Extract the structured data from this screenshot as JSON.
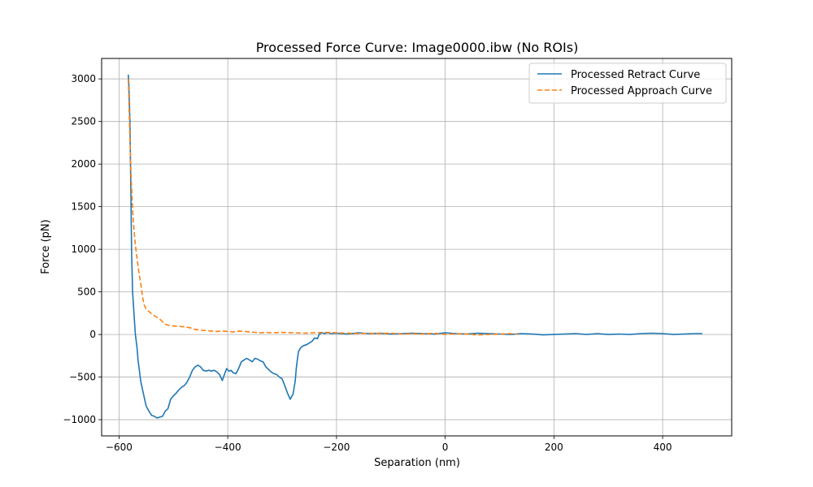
{
  "chart_data": {
    "type": "line",
    "title": "Processed Force Curve: Image0000.ibw (No ROIs)",
    "xlabel": "Separation (nm)",
    "ylabel": "Force (pN)",
    "xlim": [
      -632,
      527
    ],
    "ylim": [
      -1190,
      3240
    ],
    "xticks": [
      -600,
      -400,
      -200,
      0,
      200,
      400
    ],
    "yticks": [
      -1000,
      -500,
      0,
      500,
      1000,
      1500,
      2000,
      2500,
      3000
    ],
    "xtick_labels": [
      "−600",
      "−400",
      "−200",
      "0",
      "200",
      "400"
    ],
    "ytick_labels": [
      "−1000",
      "−500",
      "0",
      "500",
      "1000",
      "1500",
      "2000",
      "2500",
      "3000"
    ],
    "grid": true,
    "legend_position": "top-right",
    "series": [
      {
        "name": "Processed Retract Curve",
        "color": "#1f77b4",
        "style": "solid",
        "x": [
          -583,
          -582,
          -580,
          -578,
          -577,
          -575,
          -572,
          -570,
          -567,
          -565,
          -562,
          -560,
          -555,
          -550,
          -545,
          -540,
          -535,
          -530,
          -525,
          -520,
          -515,
          -510,
          -505,
          -500,
          -495,
          -490,
          -485,
          -480,
          -475,
          -470,
          -465,
          -460,
          -455,
          -450,
          -445,
          -440,
          -435,
          -430,
          -425,
          -420,
          -415,
          -410,
          -405,
          -402,
          -398,
          -394,
          -390,
          -385,
          -380,
          -375,
          -370,
          -365,
          -360,
          -355,
          -350,
          -345,
          -340,
          -335,
          -330,
          -325,
          -320,
          -315,
          -310,
          -305,
          -300,
          -295,
          -290,
          -285,
          -280,
          -276,
          -274,
          -272,
          -270,
          -265,
          -260,
          -255,
          -250,
          -245,
          -240,
          -235,
          -232,
          -230,
          -226,
          -222,
          -220,
          -215,
          -210,
          -200,
          -180,
          -160,
          -140,
          -120,
          -100,
          -80,
          -60,
          -40,
          -20,
          0,
          20,
          40,
          60,
          80,
          100,
          120,
          140,
          160,
          180,
          200,
          220,
          240,
          260,
          280,
          300,
          320,
          340,
          360,
          380,
          400,
          420,
          440,
          460,
          473
        ],
        "y": [
          3050,
          2950,
          2500,
          1600,
          1000,
          500,
          200,
          0,
          -150,
          -300,
          -450,
          -550,
          -700,
          -840,
          -900,
          -950,
          -960,
          -980,
          -970,
          -960,
          -900,
          -870,
          -760,
          -720,
          -690,
          -650,
          -620,
          -600,
          -560,
          -500,
          -420,
          -380,
          -360,
          -380,
          -420,
          -430,
          -420,
          -430,
          -420,
          -440,
          -470,
          -540,
          -450,
          -400,
          -430,
          -420,
          -450,
          -460,
          -400,
          -320,
          -300,
          -280,
          -300,
          -320,
          -280,
          -290,
          -310,
          -320,
          -380,
          -410,
          -440,
          -460,
          -470,
          -500,
          -520,
          -600,
          -690,
          -760,
          -700,
          -550,
          -400,
          -300,
          -200,
          -150,
          -130,
          -120,
          -100,
          -80,
          -40,
          -50,
          0,
          10,
          20,
          10,
          15,
          20,
          10,
          15,
          5,
          20,
          10,
          15,
          5,
          10,
          15,
          10,
          5,
          20,
          10,
          5,
          15,
          10,
          5,
          0,
          10,
          5,
          -5,
          0,
          5,
          10,
          0,
          10,
          0,
          5,
          0,
          10,
          15,
          10,
          0,
          5,
          10,
          10
        ]
      },
      {
        "name": "Processed Approach Curve",
        "color": "#ff7f0e",
        "style": "dashed",
        "x": [
          -583,
          -582,
          -580,
          -578,
          -576,
          -574,
          -572,
          -570,
          -567,
          -564,
          -560,
          -557,
          -554,
          -550,
          -545,
          -540,
          -535,
          -530,
          -525,
          -520,
          -515,
          -510,
          -500,
          -490,
          -480,
          -470,
          -460,
          -450,
          -440,
          -430,
          -420,
          -410,
          -400,
          -390,
          -380,
          -370,
          -360,
          -350,
          -340,
          -330,
          -320,
          -300,
          -280,
          -260,
          -240,
          -220,
          -200,
          -180,
          -160,
          -140,
          -120,
          -100,
          -80,
          -60,
          -40,
          -20,
          0,
          20,
          40,
          60,
          80,
          100,
          120,
          133
        ],
        "y": [
          3000,
          2800,
          2300,
          1900,
          1600,
          1350,
          1200,
          1050,
          900,
          750,
          600,
          450,
          350,
          300,
          270,
          240,
          220,
          200,
          180,
          150,
          120,
          110,
          100,
          95,
          90,
          80,
          60,
          50,
          45,
          40,
          35,
          40,
          35,
          30,
          40,
          35,
          30,
          25,
          20,
          25,
          20,
          25,
          20,
          15,
          20,
          25,
          20,
          15,
          10,
          15,
          10,
          15,
          5,
          10,
          5,
          15,
          0,
          10,
          5,
          -5,
          0,
          5,
          10,
          5
        ]
      }
    ]
  }
}
